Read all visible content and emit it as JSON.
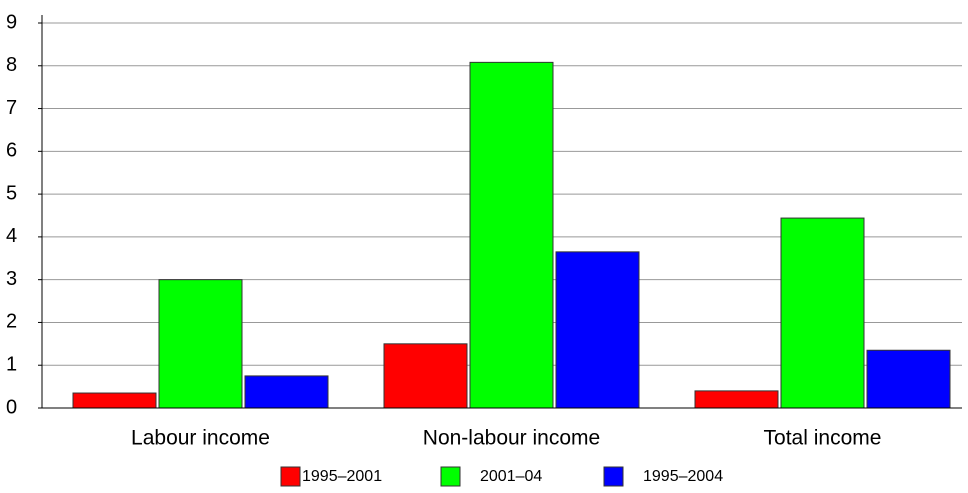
{
  "chart_data": {
    "type": "bar",
    "categories": [
      "Labour income",
      "Non-labour income",
      "Total income"
    ],
    "series": [
      {
        "name": "1995–2001",
        "color": "#ff0000",
        "values": [
          0.35,
          1.5,
          0.4
        ]
      },
      {
        "name": "2001–04",
        "color": "#00ff00",
        "values": [
          3.0,
          8.08,
          4.44
        ]
      },
      {
        "name": "1995–2004",
        "color": "#0000ff",
        "values": [
          0.75,
          3.65,
          1.35
        ]
      }
    ],
    "ylim": [
      0,
      9
    ],
    "yticks": [
      0,
      1,
      2,
      3,
      4,
      5,
      6,
      7,
      8,
      9
    ],
    "grid": true,
    "legend": "bottom"
  }
}
